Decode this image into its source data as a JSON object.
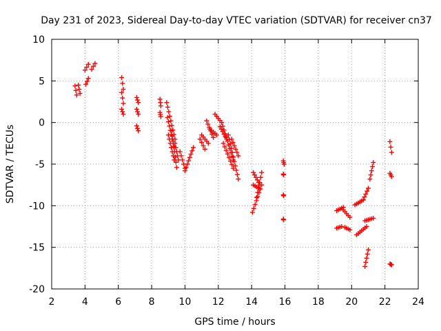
{
  "chart_data": {
    "type": "scatter",
    "title": "Day 231 of 2023, Sidereal Day-to-day VTEC variation (SDTVAR) for receiver cn37",
    "xlabel": "GPS time / hours",
    "ylabel": "SDTVAR / TECUs",
    "xlim": [
      2,
      24
    ],
    "ylim": [
      -20,
      10
    ],
    "x_ticks": [
      2,
      4,
      6,
      8,
      10,
      12,
      14,
      16,
      18,
      20,
      22,
      24
    ],
    "x_tick_labels": [
      "2",
      "4",
      "6",
      "8",
      "10",
      "12",
      "14",
      "16",
      "18",
      "20",
      "22",
      "24"
    ],
    "y_ticks": [
      -20,
      -15,
      -10,
      -5,
      0,
      5,
      10
    ],
    "y_tick_labels": [
      "-20",
      "-15",
      "-10",
      "-5",
      "0",
      "5",
      "10"
    ],
    "grid": true,
    "marker": "+",
    "color": "#ff0000",
    "series": [
      {
        "name": "SDTVAR",
        "segments": [
          [
            3.4,
            3.5,
            4.4,
            3.3
          ],
          [
            3.6,
            3.7,
            4.5,
            3.5
          ],
          [
            4.0,
            4.2,
            6.3,
            7.0
          ],
          [
            4.05,
            4.2,
            4.6,
            5.3
          ],
          [
            4.4,
            4.6,
            6.4,
            7.1
          ],
          [
            6.2,
            6.3,
            5.4,
            4.0
          ],
          [
            6.2,
            6.3,
            3.6,
            2.3
          ],
          [
            6.2,
            6.3,
            1.6,
            1.0
          ],
          [
            7.1,
            7.2,
            3.0,
            2.4
          ],
          [
            7.1,
            7.2,
            1.6,
            1.0
          ],
          [
            7.1,
            7.2,
            -0.4,
            -1.0
          ],
          [
            8.5,
            8.55,
            2.8,
            2.0
          ],
          [
            8.5,
            8.55,
            1.2,
            0.7
          ],
          [
            8.9,
            9.4,
            2.4,
            -2.0
          ],
          [
            8.95,
            9.35,
            0.6,
            -3.0
          ],
          [
            9.0,
            9.35,
            -1.5,
            -4.5
          ],
          [
            9.2,
            9.5,
            -1.0,
            -5.4
          ],
          [
            9.4,
            9.6,
            -2.5,
            -4.5
          ],
          [
            9.7,
            10.0,
            -3.5,
            -5.5
          ],
          [
            10.0,
            10.5,
            -5.8,
            -3.0
          ],
          [
            10.9,
            11.2,
            -2.0,
            -3.2
          ],
          [
            11.0,
            11.4,
            -1.5,
            -2.5
          ],
          [
            11.3,
            11.7,
            0.2,
            -1.8
          ],
          [
            11.5,
            11.9,
            -0.8,
            -1.5
          ],
          [
            11.8,
            12.2,
            1.0,
            0.0
          ],
          [
            12.1,
            12.5,
            -0.5,
            -2.0
          ],
          [
            12.2,
            12.9,
            0.0,
            -4.5
          ],
          [
            12.3,
            12.9,
            -2.5,
            -5.5
          ],
          [
            12.6,
            13.2,
            -1.5,
            -6.8
          ],
          [
            12.8,
            13.2,
            -2.0,
            -4.0
          ],
          [
            14.05,
            14.6,
            -10.8,
            -7.5
          ],
          [
            14.1,
            14.5,
            -6.0,
            -7.5
          ],
          [
            14.3,
            14.6,
            -9.0,
            -6.0
          ],
          [
            14.1,
            14.5,
            -7.5,
            -8.0
          ],
          [
            15.9,
            15.95,
            -4.6,
            -5.0
          ],
          [
            15.9,
            15.92,
            -6.2,
            -6.3
          ],
          [
            15.9,
            15.92,
            -8.7,
            -8.8
          ],
          [
            15.9,
            15.92,
            -11.6,
            -11.7
          ],
          [
            19.1,
            19.5,
            -10.6,
            -10.2
          ],
          [
            19.1,
            19.4,
            -12.7,
            -12.5
          ],
          [
            19.5,
            19.9,
            -10.5,
            -11.4
          ],
          [
            19.6,
            19.9,
            -12.6,
            -12.9
          ],
          [
            20.2,
            20.7,
            -9.9,
            -9.3
          ],
          [
            20.3,
            20.9,
            -13.5,
            -12.5
          ],
          [
            20.7,
            21.0,
            -9.3,
            -7.9
          ],
          [
            20.8,
            21.3,
            -11.8,
            -11.5
          ],
          [
            20.8,
            21.0,
            -17.3,
            -15.3
          ],
          [
            21.1,
            21.3,
            -6.8,
            -4.8
          ],
          [
            22.3,
            22.4,
            -2.3,
            -3.6
          ],
          [
            22.3,
            22.4,
            -6.1,
            -6.5
          ],
          [
            22.3,
            22.4,
            -17.0,
            -17.1
          ]
        ]
      }
    ]
  }
}
